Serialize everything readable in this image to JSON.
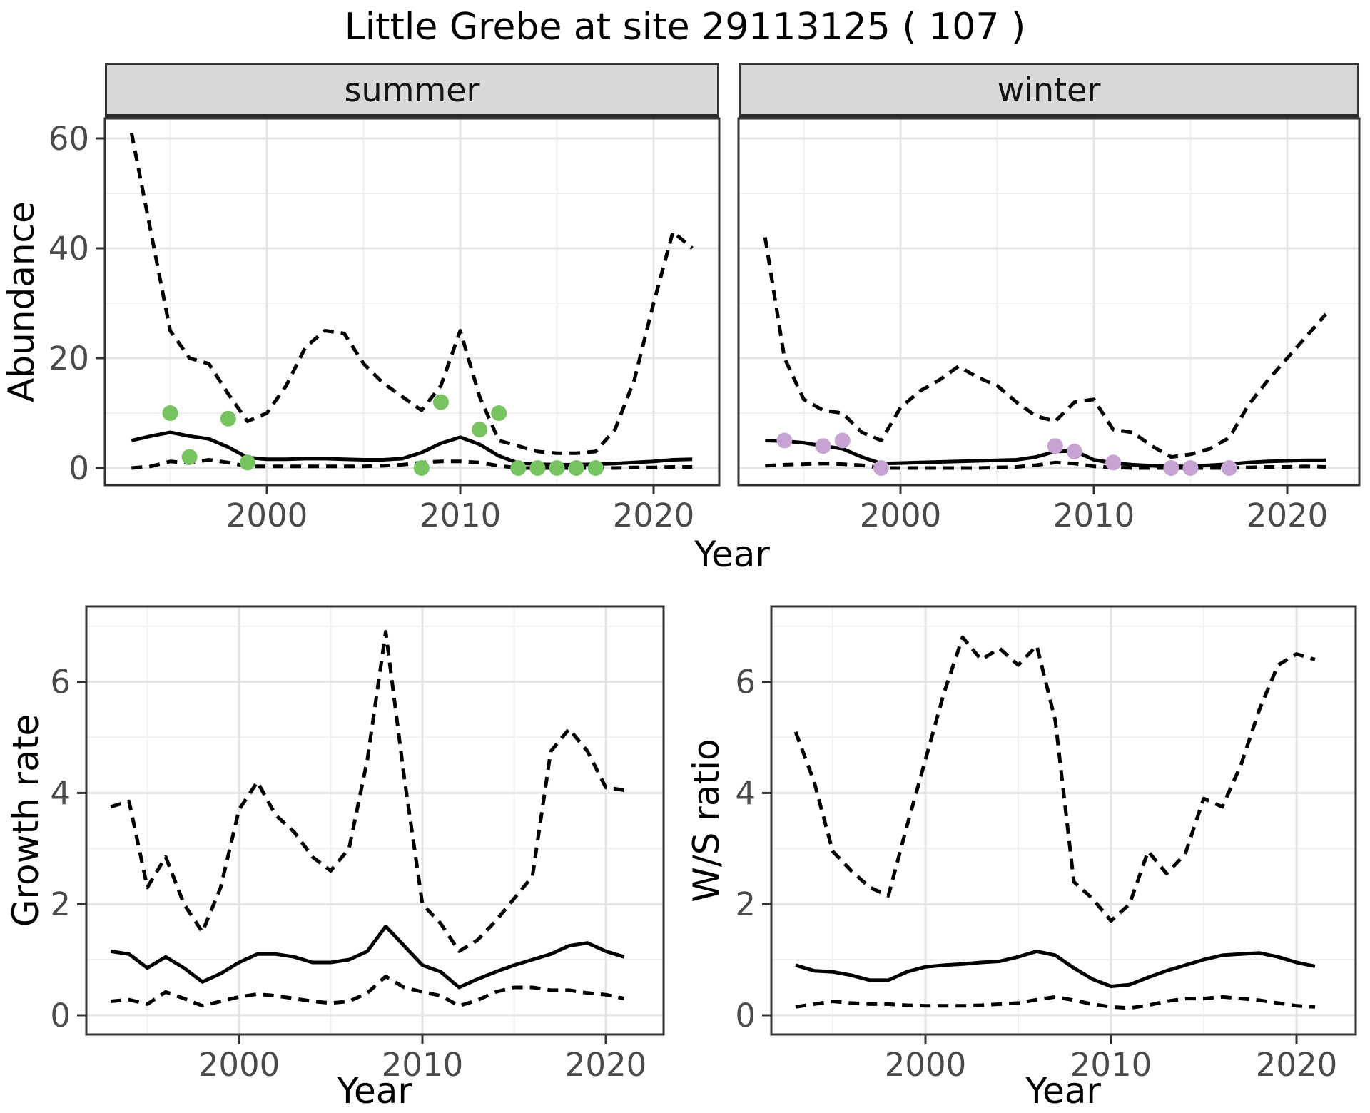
{
  "title": "Little Grebe at site 29113125 ( 107 )",
  "colors": {
    "summer_points": "#77c360",
    "winter_points": "#c6a3d3",
    "line": "#000000",
    "strip_bg": "#d8d8d8",
    "grid_major": "#e4e4e4",
    "grid_minor": "#f0f0f0",
    "axis_text": "#4a4a4a",
    "panel_border": "#333333"
  },
  "top_row": {
    "facets": [
      {
        "label": "summer"
      },
      {
        "label": "winter"
      }
    ],
    "ylabel": "Abundance",
    "xlabel": "Year"
  },
  "bottom_row": [
    {
      "ylabel": "Growth rate",
      "xlabel": "Year"
    },
    {
      "ylabel": "W/S ratio",
      "xlabel": "Year"
    }
  ],
  "chart_data": [
    {
      "id": "abundance-summer",
      "type": "line",
      "facet": "summer",
      "ylabel": "Abundance",
      "xlabel": "Year",
      "ylim": [
        -3.1,
        63.6
      ],
      "xlim": [
        1991.6,
        2023.4
      ],
      "yticks": [
        0,
        20,
        40,
        60
      ],
      "yticks_minor": [
        10,
        30,
        50
      ],
      "xticks": [
        2000,
        2010,
        2020
      ],
      "xticks_minor": [
        1995,
        2005,
        2015
      ],
      "grid": true,
      "years": [
        1993,
        1994,
        1995,
        1996,
        1997,
        1998,
        1999,
        2000,
        2001,
        2002,
        2003,
        2004,
        2005,
        2006,
        2007,
        2008,
        2009,
        2010,
        2011,
        2012,
        2013,
        2014,
        2015,
        2016,
        2017,
        2018,
        2019,
        2020,
        2021,
        2022
      ],
      "series": [
        {
          "name": "median",
          "style": "solid",
          "values": [
            5.0,
            5.8,
            6.5,
            5.8,
            5.3,
            3.8,
            1.9,
            1.6,
            1.6,
            1.7,
            1.7,
            1.6,
            1.5,
            1.5,
            1.7,
            2.8,
            4.5,
            5.6,
            4.3,
            2.2,
            0.9,
            0.7,
            0.6,
            0.6,
            0.7,
            0.8,
            1.0,
            1.2,
            1.5,
            1.6
          ]
        },
        {
          "name": "upper_ci",
          "style": "dashed",
          "values": [
            61,
            43,
            25,
            20,
            19,
            13.5,
            8.5,
            10,
            15,
            22,
            25,
            24.5,
            19,
            15.5,
            13,
            10.5,
            15,
            25,
            13,
            5,
            4,
            3,
            2.7,
            2.7,
            3,
            7,
            16,
            30,
            43,
            40
          ]
        },
        {
          "name": "lower_ci",
          "style": "dashed",
          "values": [
            0,
            0.3,
            1.2,
            0.9,
            1.5,
            1.0,
            0.3,
            0.3,
            0.3,
            0.3,
            0.3,
            0.3,
            0.3,
            0.4,
            0.6,
            1.0,
            1.2,
            1.2,
            1.0,
            0.4,
            0,
            0,
            0,
            0,
            0,
            0,
            0.1,
            0.1,
            0.2,
            0.2
          ]
        }
      ],
      "points": {
        "color": "summer_points",
        "data": [
          [
            1995,
            10
          ],
          [
            1996,
            2
          ],
          [
            1998,
            9
          ],
          [
            1999,
            1
          ],
          [
            2008,
            0
          ],
          [
            2009,
            12
          ],
          [
            2011,
            7
          ],
          [
            2012,
            10
          ],
          [
            2013,
            0
          ],
          [
            2014,
            0
          ],
          [
            2015,
            0
          ],
          [
            2016,
            0
          ],
          [
            2017,
            0
          ]
        ]
      }
    },
    {
      "id": "abundance-winter",
      "type": "line",
      "facet": "winter",
      "ylabel": "Abundance",
      "xlabel": "Year",
      "ylim": [
        -3.1,
        63.6
      ],
      "xlim": [
        1991.6,
        2023.7
      ],
      "yticks": [
        0,
        20,
        40,
        60
      ],
      "yticks_minor": [
        10,
        30,
        50
      ],
      "xticks": [
        2000,
        2010,
        2020
      ],
      "xticks_minor": [
        1995,
        2005,
        2015
      ],
      "grid": true,
      "years": [
        1993,
        1994,
        1995,
        1996,
        1997,
        1998,
        1999,
        2000,
        2001,
        2002,
        2003,
        2004,
        2005,
        2006,
        2007,
        2008,
        2009,
        2010,
        2011,
        2012,
        2013,
        2014,
        2015,
        2016,
        2017,
        2018,
        2019,
        2020,
        2021,
        2022
      ],
      "series": [
        {
          "name": "median",
          "style": "solid",
          "values": [
            5.0,
            4.9,
            4.6,
            4.0,
            3.5,
            2.0,
            0.8,
            0.9,
            1.0,
            1.1,
            1.2,
            1.3,
            1.4,
            1.5,
            2.0,
            3.0,
            3.1,
            1.5,
            0.9,
            0.6,
            0.4,
            0.3,
            0.3,
            0.5,
            0.7,
            1.0,
            1.2,
            1.3,
            1.4,
            1.4
          ]
        },
        {
          "name": "upper_ci",
          "style": "dashed",
          "values": [
            42,
            20,
            12.5,
            10.5,
            10,
            6.5,
            5,
            11,
            14,
            16,
            18.5,
            16.5,
            15,
            12,
            9.5,
            8.5,
            12,
            12.5,
            7,
            6.5,
            4,
            2,
            2.5,
            3.5,
            5.5,
            11.5,
            16,
            20,
            24,
            28
          ]
        },
        {
          "name": "lower_ci",
          "style": "dashed",
          "values": [
            0.4,
            0.6,
            0.7,
            0.8,
            0.7,
            0.5,
            0,
            0,
            0,
            0,
            0,
            0,
            0.1,
            0.2,
            0.5,
            1.0,
            0.8,
            0.3,
            0.1,
            0,
            0,
            0,
            0,
            0,
            0,
            0.1,
            0.2,
            0.2,
            0.3,
            0.2
          ]
        }
      ],
      "points": {
        "color": "winter_points",
        "data": [
          [
            1994,
            5
          ],
          [
            1996,
            4
          ],
          [
            1997,
            5
          ],
          [
            1999,
            0
          ],
          [
            2008,
            4
          ],
          [
            2009,
            3
          ],
          [
            2011,
            1
          ],
          [
            2014,
            0
          ],
          [
            2015,
            0
          ],
          [
            2017,
            0
          ]
        ]
      }
    },
    {
      "id": "growth-rate",
      "type": "line",
      "facet": null,
      "ylabel": "Growth rate",
      "xlabel": "Year",
      "ylim": [
        -0.35,
        7.35
      ],
      "xlim": [
        1991.7,
        2023.1
      ],
      "yticks": [
        0,
        2,
        4,
        6
      ],
      "yticks_minor": [
        1,
        3,
        5,
        7
      ],
      "xticks": [
        2000,
        2010,
        2020
      ],
      "xticks_minor": [
        1995,
        2005,
        2015
      ],
      "grid": true,
      "years": [
        1993,
        1994,
        1995,
        1996,
        1997,
        1998,
        1999,
        2000,
        2001,
        2002,
        2003,
        2004,
        2005,
        2006,
        2007,
        2008,
        2009,
        2010,
        2011,
        2012,
        2013,
        2014,
        2015,
        2016,
        2017,
        2018,
        2019,
        2020,
        2021
      ],
      "series": [
        {
          "name": "median",
          "style": "solid",
          "values": [
            1.15,
            1.1,
            0.85,
            1.05,
            0.85,
            0.6,
            0.75,
            0.95,
            1.1,
            1.1,
            1.05,
            0.95,
            0.95,
            1.0,
            1.15,
            1.6,
            1.25,
            0.9,
            0.78,
            0.5,
            0.65,
            0.78,
            0.9,
            1.0,
            1.1,
            1.25,
            1.3,
            1.15,
            1.05
          ]
        },
        {
          "name": "upper_ci",
          "style": "dashed",
          "values": [
            3.75,
            3.85,
            2.3,
            2.85,
            2.0,
            1.5,
            2.3,
            3.7,
            4.2,
            3.6,
            3.3,
            2.85,
            2.6,
            3.0,
            4.6,
            6.9,
            4.3,
            2.0,
            1.65,
            1.15,
            1.35,
            1.7,
            2.1,
            2.5,
            4.75,
            5.15,
            4.75,
            4.1,
            4.05
          ]
        },
        {
          "name": "lower_ci",
          "style": "dashed",
          "values": [
            0.25,
            0.28,
            0.2,
            0.42,
            0.3,
            0.17,
            0.25,
            0.33,
            0.38,
            0.35,
            0.3,
            0.25,
            0.22,
            0.25,
            0.4,
            0.7,
            0.5,
            0.42,
            0.35,
            0.17,
            0.27,
            0.42,
            0.5,
            0.5,
            0.45,
            0.45,
            0.4,
            0.37,
            0.3
          ]
        }
      ],
      "points": null
    },
    {
      "id": "ws-ratio",
      "type": "line",
      "facet": null,
      "ylabel": "W/S ratio",
      "xlabel": "Year",
      "ylim": [
        -0.35,
        7.35
      ],
      "xlim": [
        1991.7,
        2023.2
      ],
      "yticks": [
        0,
        2,
        4,
        6
      ],
      "yticks_minor": [
        1,
        3,
        5,
        7
      ],
      "xticks": [
        2000,
        2010,
        2020
      ],
      "xticks_minor": [
        1995,
        2005,
        2015
      ],
      "grid": true,
      "years": [
        1993,
        1994,
        1995,
        1996,
        1997,
        1998,
        1999,
        2000,
        2001,
        2002,
        2003,
        2004,
        2005,
        2006,
        2007,
        2008,
        2009,
        2010,
        2011,
        2012,
        2013,
        2014,
        2015,
        2016,
        2017,
        2018,
        2019,
        2020,
        2021
      ],
      "series": [
        {
          "name": "median",
          "style": "solid",
          "values": [
            0.9,
            0.8,
            0.78,
            0.72,
            0.63,
            0.63,
            0.78,
            0.87,
            0.9,
            0.92,
            0.95,
            0.97,
            1.05,
            1.15,
            1.08,
            0.85,
            0.65,
            0.52,
            0.55,
            0.68,
            0.8,
            0.9,
            1.0,
            1.08,
            1.1,
            1.12,
            1.05,
            0.95,
            0.88
          ]
        },
        {
          "name": "upper_ci",
          "style": "dashed",
          "values": [
            5.1,
            4.2,
            2.95,
            2.6,
            2.3,
            2.15,
            3.4,
            4.6,
            5.8,
            6.8,
            6.4,
            6.6,
            6.3,
            6.65,
            5.3,
            2.4,
            2.1,
            1.7,
            2.0,
            2.95,
            2.55,
            2.9,
            3.9,
            3.75,
            4.5,
            5.5,
            6.3,
            6.5,
            6.4
          ]
        },
        {
          "name": "lower_ci",
          "style": "dashed",
          "values": [
            0.15,
            0.2,
            0.25,
            0.22,
            0.2,
            0.2,
            0.18,
            0.17,
            0.17,
            0.17,
            0.18,
            0.2,
            0.22,
            0.28,
            0.33,
            0.27,
            0.2,
            0.15,
            0.13,
            0.18,
            0.25,
            0.3,
            0.3,
            0.33,
            0.3,
            0.27,
            0.22,
            0.17,
            0.15
          ]
        }
      ],
      "points": null
    }
  ]
}
